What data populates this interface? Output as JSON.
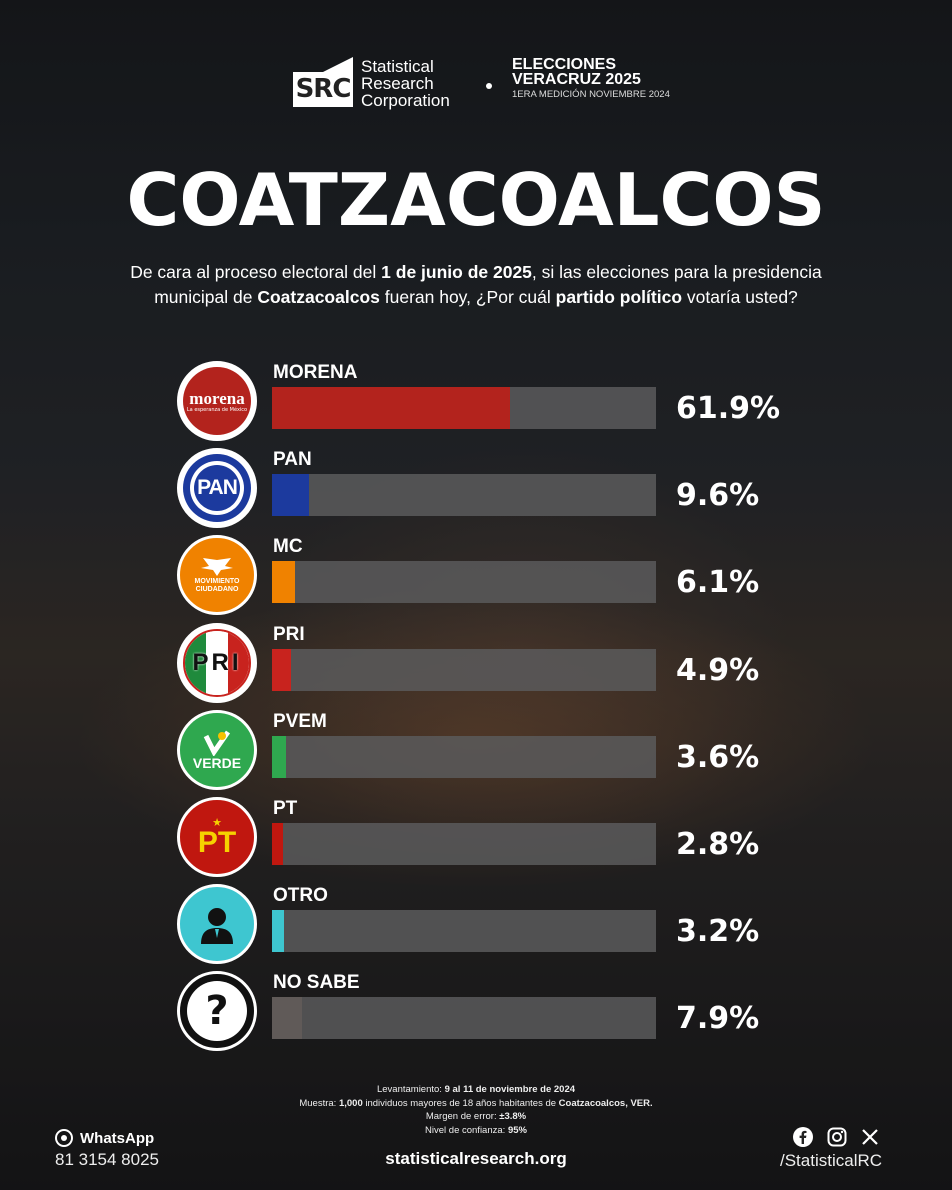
{
  "brand": {
    "logo_text": "SRC",
    "name_lines": [
      "Statistical",
      "Research",
      "Corporation"
    ]
  },
  "header": {
    "line1": "ELECCIONES",
    "line2": "VERACRUZ 2025",
    "line3": "1ERA MEDICIÓN NOVIEMBRE 2024"
  },
  "title": "COATZACOALCOS",
  "question": {
    "p1": "De cara al proceso electoral del ",
    "b1": "1 de junio de 2025",
    "p2": ", si las elecciones para la presidencia municipal de ",
    "b2": "Coatzacoalcos",
    "p3": " fueran hoy, ¿Por cuál ",
    "b3": "partido político",
    "p4": " votaría usted?"
  },
  "chart_data": {
    "type": "bar",
    "categories": [
      "MORENA",
      "PAN",
      "MC",
      "PRI",
      "PVEM",
      "PT",
      "OTRO",
      "NO SABE"
    ],
    "values": [
      61.9,
      9.6,
      6.1,
      4.9,
      3.6,
      2.8,
      3.2,
      7.9
    ],
    "labels": [
      "61.9%",
      "9.6%",
      "6.1%",
      "4.9%",
      "3.6%",
      "2.8%",
      "3.2%",
      "7.9%"
    ],
    "colors": [
      "#b3231d",
      "#1c3a9e",
      "#f08200",
      "#c8231e",
      "#2fa84f",
      "#c0170f",
      "#3ec6d0",
      "#605a58"
    ],
    "xlim": [
      0,
      100
    ]
  },
  "parties": [
    {
      "logo_text": "morena",
      "sub": "La esperanza de México"
    },
    {
      "logo_text": "PAN"
    },
    {
      "logo_text": "MOVIMIENTO CIUDADANO"
    },
    {
      "logo_text": "PRI"
    },
    {
      "logo_text": "VERDE"
    },
    {
      "logo_text": "PT"
    },
    {
      "logo_text": ""
    },
    {
      "logo_text": "?"
    }
  ],
  "methodology": {
    "l1a": "Levantamiento: ",
    "l1b": "9 al 11 de noviembre de 2024",
    "l2a": "Muestra: ",
    "l2b": "1,000",
    "l2c": " individuos mayores de 18 años habitantes de ",
    "l2d": "Coatzacoalcos, VER.",
    "l3a": "Margen de error: ",
    "l3b": "±3.8%",
    "l4a": "Nivel de confianza: ",
    "l4b": "95%"
  },
  "footer": {
    "whatsapp_label": "WhatsApp",
    "whatsapp_number": "81 3154 8025",
    "website": "statisticalresearch.org",
    "handle": "/StatisticalRC"
  }
}
